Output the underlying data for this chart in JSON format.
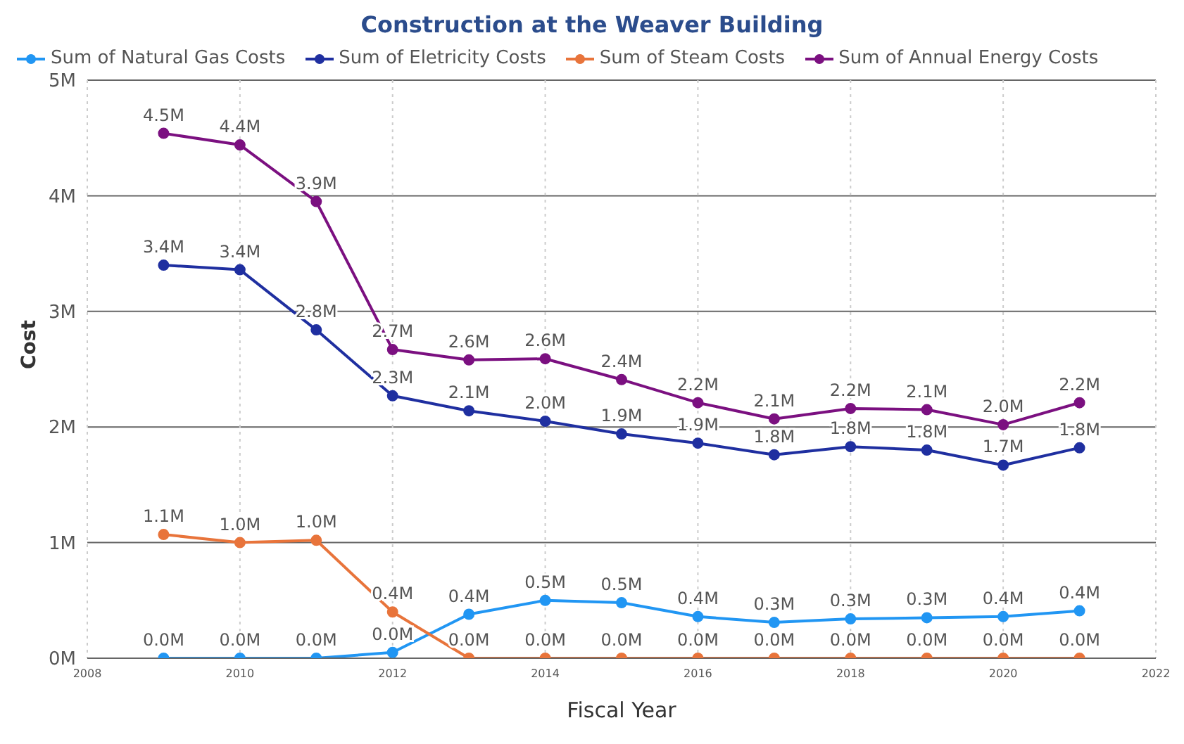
{
  "chart_data": {
    "type": "line",
    "title": "Construction at the Weaver Building",
    "xlabel": "Fiscal Year",
    "ylabel": "Cost",
    "x": [
      2009,
      2010,
      2011,
      2012,
      2013,
      2014,
      2015,
      2016,
      2017,
      2018,
      2019,
      2020,
      2021
    ],
    "series": [
      {
        "name": "Sum of Natural Gas Costs",
        "color": "#2196f3",
        "values": [
          0,
          0,
          0,
          0.05,
          0.38,
          0.5,
          0.48,
          0.36,
          0.31,
          0.34,
          0.35,
          0.36,
          0.41
        ],
        "value_labels": [
          "0.0M",
          "0.0M",
          "0.0M",
          "0.0M",
          "0.4M",
          "0.5M",
          "0.5M",
          "0.4M",
          "0.3M",
          "0.3M",
          "0.3M",
          "0.4M",
          "0.4M"
        ]
      },
      {
        "name": "Sum of Eletricity Costs",
        "color": "#1f2fa0",
        "values": [
          3.4,
          3.36,
          2.84,
          2.27,
          2.14,
          2.05,
          1.94,
          1.86,
          1.76,
          1.83,
          1.8,
          1.67,
          1.82
        ],
        "value_labels": [
          "3.4M",
          "3.4M",
          "2.8M",
          "2.3M",
          "2.1M",
          "2.0M",
          "1.9M",
          "1.9M",
          "1.8M",
          "1.8M",
          "1.8M",
          "1.7M",
          "1.8M"
        ]
      },
      {
        "name": "Sum of Steam Costs",
        "color": "#e8743b",
        "values": [
          1.07,
          1.0,
          1.02,
          0.4,
          0,
          0,
          0,
          0,
          0,
          0,
          0,
          0,
          0
        ],
        "value_labels": [
          "1.1M",
          "1.0M",
          "1.0M",
          "0.4M",
          "0.0M",
          "0.0M",
          "0.0M",
          "0.0M",
          "0.0M",
          "0.0M",
          "0.0M",
          "0.0M",
          "0.0M"
        ]
      },
      {
        "name": "Sum of Annual Energy Costs",
        "color": "#7b1080",
        "values": [
          4.54,
          4.44,
          3.95,
          2.67,
          2.58,
          2.59,
          2.41,
          2.21,
          2.07,
          2.16,
          2.15,
          2.02,
          2.21
        ],
        "value_labels": [
          "4.5M",
          "4.4M",
          "3.9M",
          "2.7M",
          "2.6M",
          "2.6M",
          "2.4M",
          "2.2M",
          "2.1M",
          "2.2M",
          "2.1M",
          "2.0M",
          "2.2M"
        ]
      }
    ],
    "xlim": [
      2008,
      2022
    ],
    "xticks": [
      2008,
      2010,
      2012,
      2014,
      2016,
      2018,
      2020,
      2022
    ],
    "ylim": [
      0,
      5
    ],
    "yticks": [
      {
        "value": 0,
        "label": "0M"
      },
      {
        "value": 1,
        "label": "1M"
      },
      {
        "value": 2,
        "label": "2M"
      },
      {
        "value": 3,
        "label": "3M"
      },
      {
        "value": 4,
        "label": "4M"
      },
      {
        "value": 5,
        "label": "5M"
      }
    ],
    "grid": true,
    "legend": "top left",
    "marker": "circle",
    "line_style": "solid"
  }
}
